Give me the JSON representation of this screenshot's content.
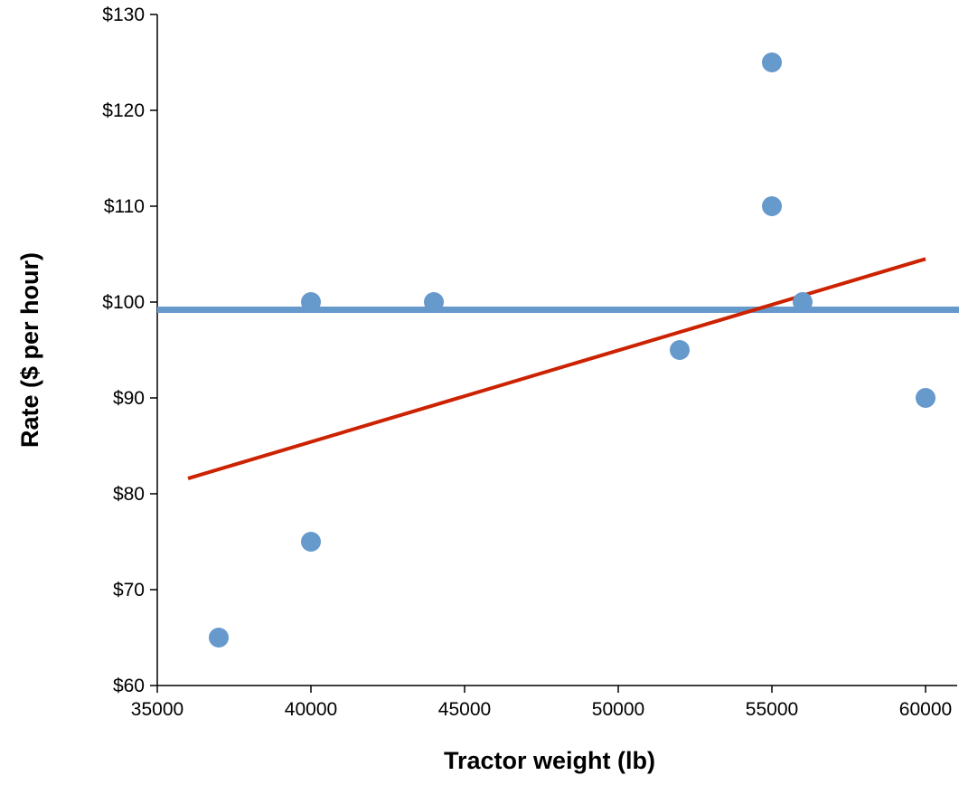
{
  "chart_data": {
    "type": "scatter",
    "title": "",
    "xlabel": "Tractor weight (lb)",
    "ylabel": "Rate ($ per hour)",
    "xlim": [
      35000,
      61000
    ],
    "ylim": [
      60,
      130
    ],
    "x_ticks": [
      35000,
      40000,
      45000,
      50000,
      55000,
      60000
    ],
    "x_tick_labels": [
      "35000",
      "40000",
      "45000",
      "50000",
      "55000",
      "60000"
    ],
    "y_ticks": [
      60,
      70,
      80,
      90,
      100,
      110,
      120,
      130
    ],
    "y_tick_labels": [
      "$60",
      "$70",
      "$80",
      "$90",
      "$100",
      "$110",
      "$120",
      "$130"
    ],
    "grid": false,
    "legend": "none",
    "series": [
      {
        "color": "#6699cc",
        "points": [
          {
            "x": 37000,
            "y": 65
          },
          {
            "x": 40000,
            "y": 75
          },
          {
            "x": 40000,
            "y": 100
          },
          {
            "x": 44000,
            "y": 100
          },
          {
            "x": 52000,
            "y": 95
          },
          {
            "x": 55000,
            "y": 125
          },
          {
            "x": 55000,
            "y": 110
          },
          {
            "x": 56000,
            "y": 100
          },
          {
            "x": 60000,
            "y": 90
          }
        ]
      }
    ],
    "reference_lines": [
      {
        "kind": "horizontal",
        "y": 99.2,
        "color": "#6699cc"
      },
      {
        "kind": "trend",
        "x": [
          36000,
          60000
        ],
        "y": [
          81.6,
          104.5
        ],
        "color": "#cc2200"
      }
    ]
  }
}
